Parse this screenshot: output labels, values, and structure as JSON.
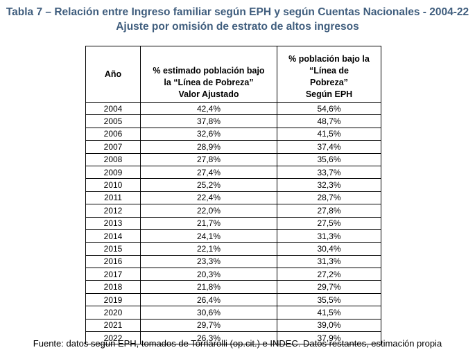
{
  "title": {
    "line1": "Tabla 7 – Relación entre Ingreso familiar según EPH y según Cuentas Nacionales - 2004-22",
    "line2": "Ajuste por omisión de estrato de altos ingresos"
  },
  "table": {
    "headers": {
      "year": "Año",
      "adjusted": [
        "% estimado población bajo",
        "la “Línea de Pobreza”",
        "Valor Ajustado"
      ],
      "eph": [
        "% población bajo la",
        "“Línea de",
        "Pobreza”",
        "Según EPH"
      ]
    },
    "rows": [
      {
        "year": "2004",
        "adjusted": "42,4%",
        "eph": "54,6%"
      },
      {
        "year": "2005",
        "adjusted": "37,8%",
        "eph": "48,7%"
      },
      {
        "year": "2006",
        "adjusted": "32,6%",
        "eph": "41,5%"
      },
      {
        "year": "2007",
        "adjusted": "28,9%",
        "eph": "37,4%"
      },
      {
        "year": "2008",
        "adjusted": "27,8%",
        "eph": "35,6%"
      },
      {
        "year": "2009",
        "adjusted": "27,4%",
        "eph": "33,7%"
      },
      {
        "year": "2010",
        "adjusted": "25,2%",
        "eph": "32,3%"
      },
      {
        "year": "2011",
        "adjusted": "22,4%",
        "eph": "28,7%"
      },
      {
        "year": "2012",
        "adjusted": "22,0%",
        "eph": "27,8%"
      },
      {
        "year": "2013",
        "adjusted": "21,7%",
        "eph": "27,5%"
      },
      {
        "year": "2014",
        "adjusted": "24,1%",
        "eph": "31,3%"
      },
      {
        "year": "2015",
        "adjusted": "22,1%",
        "eph": "30,4%"
      },
      {
        "year": "2016",
        "adjusted": "23,3%",
        "eph": "31,3%"
      },
      {
        "year": "2017",
        "adjusted": "20,3%",
        "eph": "27,2%"
      },
      {
        "year": "2018",
        "adjusted": "21,8%",
        "eph": "29,7%"
      },
      {
        "year": "2019",
        "adjusted": "26,4%",
        "eph": "35,5%"
      },
      {
        "year": "2020",
        "adjusted": "30,6%",
        "eph": "41,5%"
      },
      {
        "year": "2021",
        "adjusted": "29,7%",
        "eph": "39,0%"
      },
      {
        "year": "2022",
        "adjusted": "26,3%",
        "eph": "37,9%"
      }
    ]
  },
  "source": "Fuente: datos según EPH, tomados de Tornarolli (op.cit.) e INDEC. Datos restantes, estimación propia",
  "colors": {
    "title": "#3f5d7d",
    "text": "#000000",
    "background": "#ffffff"
  }
}
